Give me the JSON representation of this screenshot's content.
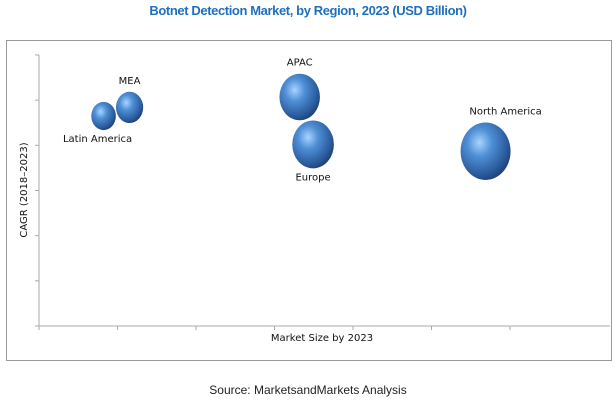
{
  "chart_data": {
    "type": "bubble",
    "title": "Botnet Detection Market, by Region, 2023 (USD Billion)",
    "xlabel": "Market Size by 2023",
    "ylabel": "CAGR (2018–2023)",
    "xlim": [
      0,
      7.25
    ],
    "ylim": [
      0,
      6
    ],
    "x_ticks": 7,
    "y_ticks": 7,
    "tick_labels_shown": false,
    "grid": false,
    "bubble_color": "#3a72b8",
    "points": [
      {
        "name": "Latin America",
        "x": 0.82,
        "y": 4.65,
        "size": 0.33,
        "label_pos": "below"
      },
      {
        "name": "MEA",
        "x": 1.15,
        "y": 4.84,
        "size": 0.4,
        "label_pos": "above"
      },
      {
        "name": "APAC",
        "x": 3.31,
        "y": 5.07,
        "size": 0.75,
        "label_pos": "above"
      },
      {
        "name": "Europe",
        "x": 3.48,
        "y": 4.02,
        "size": 0.78,
        "label_pos": "below"
      },
      {
        "name": "North America",
        "x": 5.67,
        "y": 3.87,
        "size": 1.0,
        "label_pos": "above"
      }
    ]
  },
  "source": "Source: MarketsandMarkets Analysis"
}
